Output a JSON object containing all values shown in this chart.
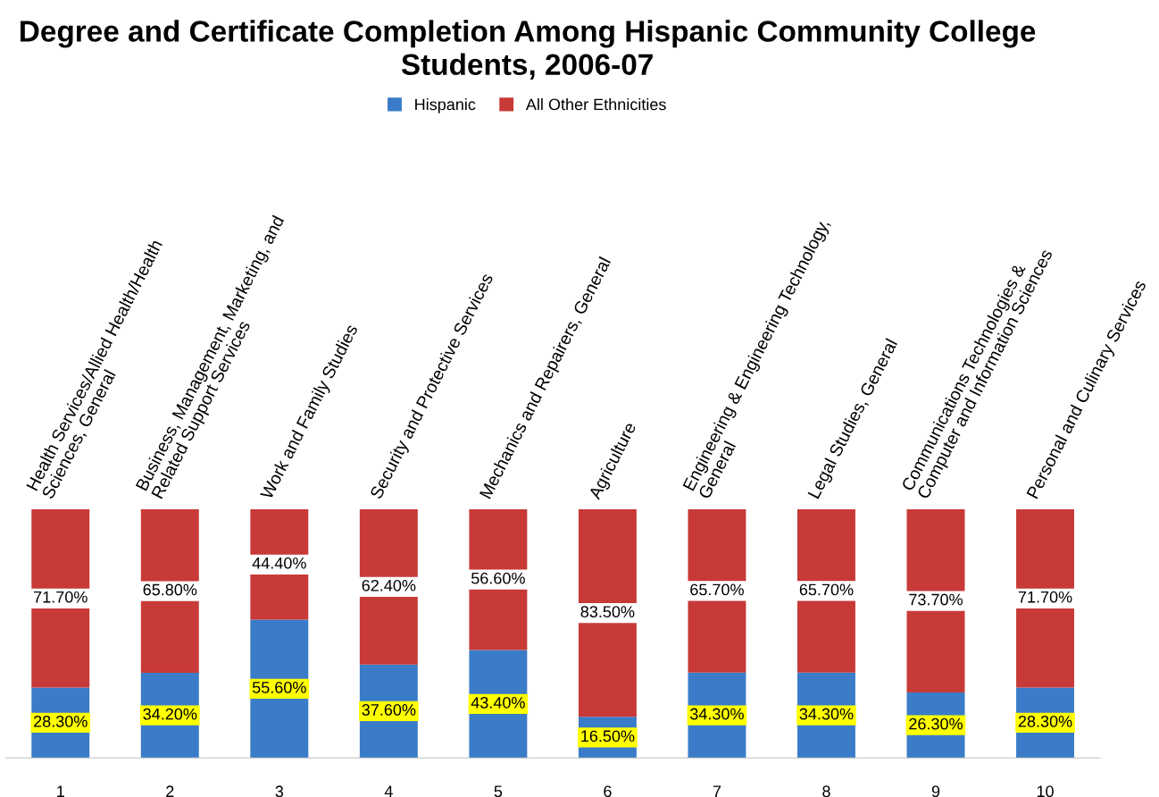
{
  "chart_data": {
    "type": "bar",
    "stacked": true,
    "title": "Degree and Certificate Completion Among Hispanic Community College Students, 2006-07",
    "categories": [
      "1",
      "2",
      "3",
      "4",
      "5",
      "6",
      "7",
      "8",
      "9",
      "10"
    ],
    "series": [
      {
        "name": "Hispanic",
        "color": "#3a7cc8",
        "values": [
          28.3,
          34.2,
          55.6,
          37.6,
          43.4,
          16.5,
          34.3,
          34.3,
          26.3,
          28.3
        ],
        "value_labels": [
          "28.30%",
          "34.20%",
          "55.60%",
          "37.60%",
          "43.40%",
          "16.50%",
          "34.30%",
          "34.30%",
          "26.30%",
          "28.30%"
        ]
      },
      {
        "name": "All Other Ethnicities",
        "color": "#c83a38",
        "values": [
          71.7,
          65.8,
          44.4,
          62.4,
          56.6,
          83.5,
          65.7,
          65.7,
          73.7,
          71.7
        ],
        "value_labels": [
          "71.70%",
          "65.80%",
          "44.40%",
          "62.40%",
          "56.60%",
          "83.50%",
          "65.70%",
          "65.70%",
          "73.70%",
          "71.70%"
        ]
      }
    ],
    "annotations": [
      {
        "text": "Health Services/Allied Health/Health\nSciences, General",
        "x": "1",
        "y": 100
      },
      {
        "text": "Business, Management, Marketing, and\nRelated Support Services",
        "x": "2",
        "y": 100
      },
      {
        "text": "Work and Family Studies",
        "x": "3",
        "y": 100
      },
      {
        "text": "Security and Protective Services",
        "x": "4",
        "y": 100
      },
      {
        "text": "Mechanics and Repairers, General",
        "x": "5",
        "y": 100
      },
      {
        "text": "Agriculture",
        "x": "6",
        "y": 100
      },
      {
        "text": "Engineering & Engineering Technology,\nGeneral",
        "x": "7",
        "y": 100
      },
      {
        "text": "Legal Studies, General",
        "x": "8",
        "y": 100
      },
      {
        "text": "Communications Technologies &\nComputer and Information Sciences",
        "x": "9",
        "y": 100
      },
      {
        "text": "Personal and Culinary Services",
        "x": "10",
        "y": 100
      }
    ],
    "legend": "top",
    "grid": false,
    "tick_labels": "x"
  }
}
